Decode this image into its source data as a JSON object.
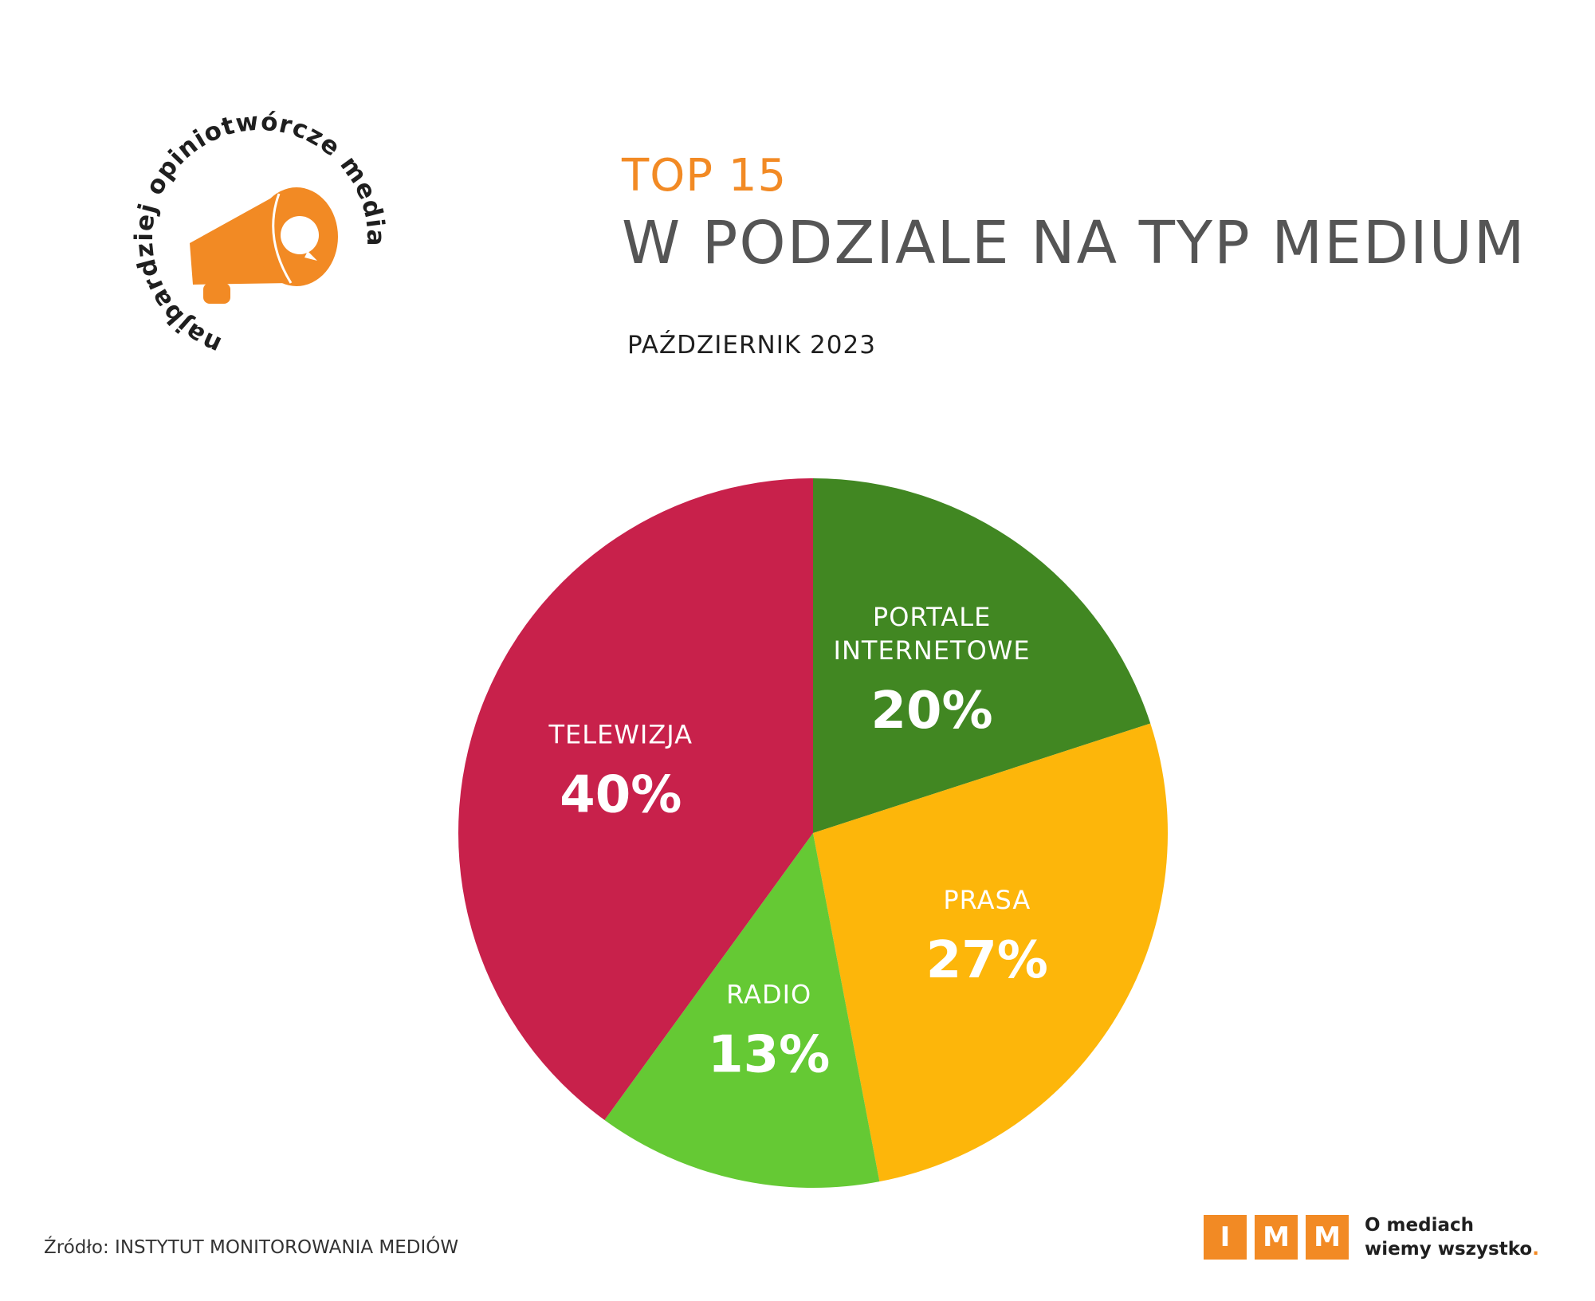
{
  "badge": {
    "arc_text": "najbardziej opiniotwórcze media",
    "icon": "megaphone-icon",
    "color": "#f28a24"
  },
  "header": {
    "title_top": "TOP 15",
    "title_main": "W PODZIALE NA TYP MEDIUM",
    "subtitle": "PAŹDZIERNIK 2023"
  },
  "chart_data": {
    "type": "pie",
    "categories": [
      "PORTALE INTERNETOWE",
      "PRASA",
      "RADIO",
      "TELEWIZJA"
    ],
    "values": [
      20,
      27,
      13,
      40
    ],
    "value_labels": [
      "20%",
      "27%",
      "13%",
      "40%"
    ],
    "colors": [
      "#418722",
      "#fdb60a",
      "#65c934",
      "#c8214b"
    ],
    "label_lines": [
      [
        "PORTALE",
        "INTERNETOWE"
      ],
      [
        "PRASA"
      ],
      [
        "RADIO"
      ],
      [
        "TELEWIZJA"
      ]
    ]
  },
  "footer": {
    "source": "Źródło: INSTYTUT MONITOROWANIA MEDIÓW",
    "logo_letters": [
      "I",
      "M",
      "M"
    ],
    "tagline_line1": "O mediach",
    "tagline_line2": "wiemy wszystko",
    "tagline_dot": "."
  }
}
